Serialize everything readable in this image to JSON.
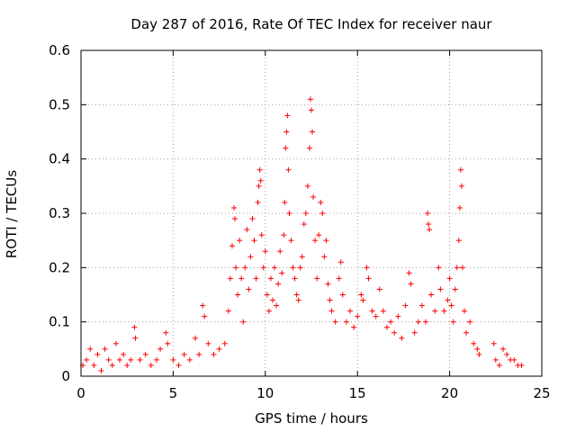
{
  "chart_data": {
    "type": "scatter",
    "title": "Day 287 of 2016, Rate Of TEC Index for receiver naur",
    "xlabel": "GPS time / hours",
    "ylabel": "ROTI / TECUs",
    "xlim": [
      0,
      25
    ],
    "ylim": [
      0,
      0.6
    ],
    "xticks": [
      "0",
      "5",
      "10",
      "15",
      "20",
      "25"
    ],
    "yticks": [
      "0",
      "0.1",
      "0.2",
      "0.3",
      "0.4",
      "0.5",
      "0.6"
    ],
    "grid": true,
    "marker": "+",
    "color": "#ff0000",
    "series": [
      {
        "points": [
          [
            0.1,
            0.02
          ],
          [
            0.3,
            0.03
          ],
          [
            0.5,
            0.05
          ],
          [
            0.7,
            0.02
          ],
          [
            0.9,
            0.04
          ],
          [
            1.1,
            0.01
          ],
          [
            1.3,
            0.05
          ],
          [
            1.5,
            0.03
          ],
          [
            1.7,
            0.02
          ],
          [
            1.9,
            0.06
          ],
          [
            2.1,
            0.03
          ],
          [
            2.3,
            0.04
          ],
          [
            2.5,
            0.02
          ],
          [
            2.7,
            0.03
          ],
          [
            2.9,
            0.09
          ],
          [
            2.95,
            0.07
          ],
          [
            3.2,
            0.03
          ],
          [
            3.5,
            0.04
          ],
          [
            3.8,
            0.02
          ],
          [
            4.1,
            0.03
          ],
          [
            4.3,
            0.05
          ],
          [
            4.6,
            0.08
          ],
          [
            4.7,
            0.06
          ],
          [
            5.0,
            0.03
          ],
          [
            5.3,
            0.02
          ],
          [
            5.6,
            0.04
          ],
          [
            5.9,
            0.03
          ],
          [
            6.2,
            0.07
          ],
          [
            6.4,
            0.04
          ],
          [
            6.6,
            0.13
          ],
          [
            6.7,
            0.11
          ],
          [
            6.9,
            0.06
          ],
          [
            7.2,
            0.04
          ],
          [
            7.5,
            0.05
          ],
          [
            7.8,
            0.06
          ],
          [
            8.0,
            0.12
          ],
          [
            8.1,
            0.18
          ],
          [
            8.2,
            0.24
          ],
          [
            8.3,
            0.31
          ],
          [
            8.35,
            0.29
          ],
          [
            8.4,
            0.2
          ],
          [
            8.5,
            0.15
          ],
          [
            8.6,
            0.25
          ],
          [
            8.7,
            0.18
          ],
          [
            8.8,
            0.1
          ],
          [
            8.9,
            0.2
          ],
          [
            9.0,
            0.27
          ],
          [
            9.1,
            0.16
          ],
          [
            9.2,
            0.22
          ],
          [
            9.3,
            0.29
          ],
          [
            9.4,
            0.25
          ],
          [
            9.5,
            0.18
          ],
          [
            9.6,
            0.32
          ],
          [
            9.65,
            0.35
          ],
          [
            9.7,
            0.38
          ],
          [
            9.75,
            0.36
          ],
          [
            9.8,
            0.26
          ],
          [
            9.9,
            0.2
          ],
          [
            10.0,
            0.23
          ],
          [
            10.1,
            0.15
          ],
          [
            10.2,
            0.12
          ],
          [
            10.3,
            0.18
          ],
          [
            10.4,
            0.14
          ],
          [
            10.5,
            0.2
          ],
          [
            10.6,
            0.13
          ],
          [
            10.7,
            0.17
          ],
          [
            10.8,
            0.23
          ],
          [
            10.9,
            0.19
          ],
          [
            11.0,
            0.26
          ],
          [
            11.05,
            0.32
          ],
          [
            11.1,
            0.42
          ],
          [
            11.15,
            0.45
          ],
          [
            11.2,
            0.48
          ],
          [
            11.25,
            0.38
          ],
          [
            11.3,
            0.3
          ],
          [
            11.4,
            0.25
          ],
          [
            11.5,
            0.2
          ],
          [
            11.6,
            0.18
          ],
          [
            11.7,
            0.15
          ],
          [
            11.8,
            0.14
          ],
          [
            11.9,
            0.2
          ],
          [
            12.0,
            0.22
          ],
          [
            12.1,
            0.28
          ],
          [
            12.2,
            0.3
          ],
          [
            12.3,
            0.35
          ],
          [
            12.4,
            0.42
          ],
          [
            12.45,
            0.51
          ],
          [
            12.5,
            0.49
          ],
          [
            12.55,
            0.45
          ],
          [
            12.6,
            0.33
          ],
          [
            12.7,
            0.25
          ],
          [
            12.8,
            0.18
          ],
          [
            12.9,
            0.26
          ],
          [
            13.0,
            0.32
          ],
          [
            13.1,
            0.3
          ],
          [
            13.2,
            0.22
          ],
          [
            13.3,
            0.25
          ],
          [
            13.4,
            0.17
          ],
          [
            13.5,
            0.14
          ],
          [
            13.6,
            0.12
          ],
          [
            13.8,
            0.1
          ],
          [
            14.0,
            0.18
          ],
          [
            14.1,
            0.21
          ],
          [
            14.2,
            0.15
          ],
          [
            14.4,
            0.1
          ],
          [
            14.6,
            0.12
          ],
          [
            14.8,
            0.09
          ],
          [
            15.0,
            0.11
          ],
          [
            15.2,
            0.15
          ],
          [
            15.3,
            0.14
          ],
          [
            15.5,
            0.2
          ],
          [
            15.6,
            0.18
          ],
          [
            15.8,
            0.12
          ],
          [
            16.0,
            0.11
          ],
          [
            16.2,
            0.16
          ],
          [
            16.4,
            0.12
          ],
          [
            16.6,
            0.09
          ],
          [
            16.8,
            0.1
          ],
          [
            17.0,
            0.08
          ],
          [
            17.2,
            0.11
          ],
          [
            17.4,
            0.07
          ],
          [
            17.6,
            0.13
          ],
          [
            17.8,
            0.19
          ],
          [
            17.9,
            0.17
          ],
          [
            18.1,
            0.08
          ],
          [
            18.3,
            0.1
          ],
          [
            18.5,
            0.13
          ],
          [
            18.7,
            0.1
          ],
          [
            18.8,
            0.3
          ],
          [
            18.85,
            0.28
          ],
          [
            18.9,
            0.27
          ],
          [
            19.0,
            0.15
          ],
          [
            19.2,
            0.12
          ],
          [
            19.4,
            0.2
          ],
          [
            19.5,
            0.16
          ],
          [
            19.7,
            0.12
          ],
          [
            19.9,
            0.14
          ],
          [
            20.0,
            0.18
          ],
          [
            20.1,
            0.13
          ],
          [
            20.2,
            0.1
          ],
          [
            20.3,
            0.16
          ],
          [
            20.4,
            0.2
          ],
          [
            20.5,
            0.25
          ],
          [
            20.55,
            0.31
          ],
          [
            20.6,
            0.38
          ],
          [
            20.65,
            0.35
          ],
          [
            20.7,
            0.2
          ],
          [
            20.8,
            0.12
          ],
          [
            20.9,
            0.08
          ],
          [
            21.1,
            0.1
          ],
          [
            21.3,
            0.06
          ],
          [
            21.5,
            0.05
          ],
          [
            21.6,
            0.04
          ],
          [
            22.4,
            0.06
          ],
          [
            22.5,
            0.03
          ],
          [
            22.7,
            0.02
          ],
          [
            22.9,
            0.05
          ],
          [
            23.1,
            0.04
          ],
          [
            23.3,
            0.03
          ],
          [
            23.5,
            0.03
          ],
          [
            23.7,
            0.02
          ],
          [
            23.9,
            0.02
          ]
        ]
      }
    ]
  }
}
